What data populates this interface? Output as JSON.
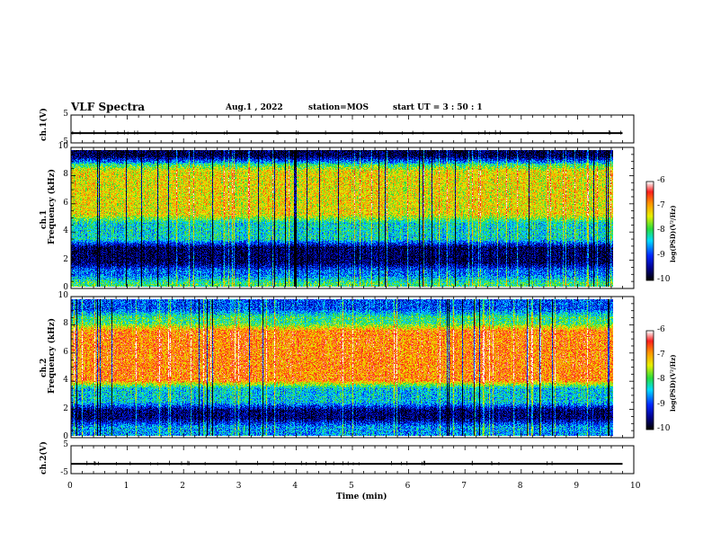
{
  "header": {
    "title": "VLF Spectra",
    "date": "Aug.1 , 2022",
    "station": "station=MOS",
    "start": "start UT = 3 : 50 : 1"
  },
  "panels": {
    "ch1_voltage": {
      "ylabel": "ch.1(V)",
      "ticks": [
        "5",
        "-5"
      ]
    },
    "ch1_spec": {
      "ylabel": "ch.1\nFrequency (kHz)",
      "ticks": [
        "10",
        "8",
        "6",
        "4",
        "2",
        "0"
      ]
    },
    "ch2_spec": {
      "ylabel": "ch.2\nFrequency (kHz)",
      "ticks": [
        "10",
        "8",
        "6",
        "4",
        "2",
        "0"
      ]
    },
    "ch2_voltage": {
      "ylabel": "ch.2(V)",
      "ticks": [
        "5",
        "-5"
      ]
    }
  },
  "colorbar": {
    "label": "log(PSD)(V²/Hz)",
    "ticks": [
      "-6",
      "-7",
      "-8",
      "-9",
      "-10"
    ]
  },
  "xaxis": {
    "label": "Time (min)",
    "ticks": [
      "0",
      "1",
      "2",
      "3",
      "4",
      "5",
      "6",
      "7",
      "8",
      "9",
      "10"
    ]
  },
  "chart_data": [
    {
      "type": "line",
      "title": "",
      "ylabel": "ch.1(V)",
      "xlabel": "",
      "xlim": [
        0,
        10
      ],
      "ylim": [
        -5,
        5
      ],
      "series": [
        {
          "x": [
            0,
            9.8
          ],
          "values": [
            -1.5,
            -1.5
          ]
        }
      ]
    },
    {
      "type": "heatmap",
      "ylabel": "Frequency (kHz)",
      "xlim": [
        0,
        10
      ],
      "ylim": [
        0,
        10
      ],
      "color_range": [
        -10,
        -6
      ],
      "description_bands_khz": [
        {
          "range": [
            0,
            0.6
          ],
          "log_psd": -8
        },
        {
          "range": [
            0.6,
            1.5
          ],
          "log_psd": -8.8
        },
        {
          "range": [
            1.5,
            3.2
          ],
          "log_psd": -9.7
        },
        {
          "range": [
            3.2,
            5.0
          ],
          "log_psd": -8.3
        },
        {
          "range": [
            5.0,
            8.8
          ],
          "log_psd": -7.3
        },
        {
          "range": [
            8.8,
            9.3
          ],
          "log_psd": -8.3
        },
        {
          "range": [
            9.3,
            10
          ],
          "log_psd": -9.8
        }
      ],
      "data_end_min": 9.82
    },
    {
      "type": "heatmap",
      "ylabel": "Frequency (kHz)",
      "xlim": [
        0,
        10
      ],
      "ylim": [
        0,
        10
      ],
      "color_range": [
        -10,
        -6
      ],
      "description_bands_khz": [
        {
          "range": [
            0,
            1.0
          ],
          "log_psd": -8.6
        },
        {
          "range": [
            1.0,
            2.2
          ],
          "log_psd": -9.6
        },
        {
          "range": [
            2.2,
            3.8
          ],
          "log_psd": -8.4
        },
        {
          "range": [
            3.8,
            8.0
          ],
          "log_psd": -6.8
        },
        {
          "range": [
            8.0,
            9.0
          ],
          "log_psd": -8.0
        },
        {
          "range": [
            9.0,
            10
          ],
          "log_psd": -8.9
        }
      ],
      "data_end_min": 9.82
    },
    {
      "type": "line",
      "title": "",
      "ylabel": "ch.2(V)",
      "xlabel": "Time (min)",
      "xlim": [
        0,
        10
      ],
      "ylim": [
        -5,
        5
      ],
      "series": [
        {
          "x": [
            0,
            9.8
          ],
          "values": [
            -1.5,
            -1.5
          ]
        }
      ]
    }
  ]
}
